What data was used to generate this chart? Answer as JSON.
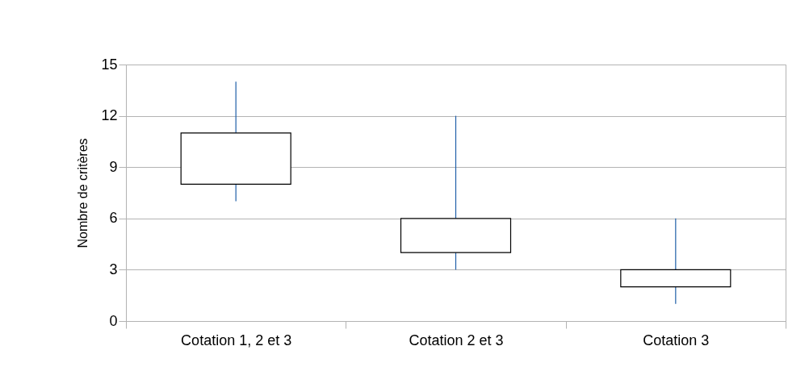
{
  "chart_data": {
    "type": "candlestick",
    "categories": [
      "Cotation 1, 2 et 3",
      "Cotation 2 et 3",
      "Cotation 3"
    ],
    "ohlc": [
      [
        8,
        14,
        7,
        11
      ],
      [
        4,
        12,
        3,
        6
      ],
      [
        2,
        6,
        1,
        3
      ]
    ],
    "color": "#ffffff",
    "ylabel": "Nombre de critères",
    "ylim": [
      0,
      15
    ],
    "yticks": [
      0,
      3,
      6,
      9,
      12,
      15
    ],
    "grid": "y"
  }
}
